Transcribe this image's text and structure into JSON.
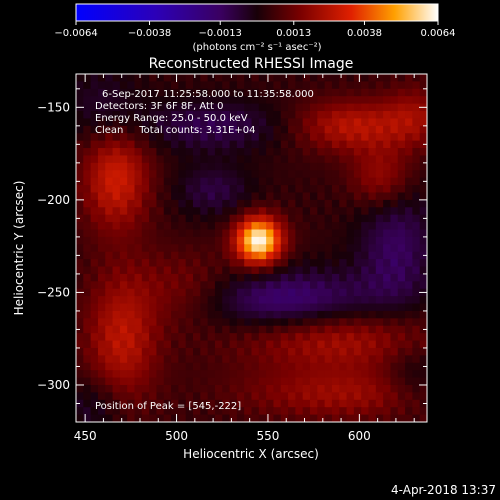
{
  "chart_data": {
    "type": "heatmap",
    "title": "Reconstructed RHESSI Image",
    "xlabel": "Heliocentric X (arcsec)",
    "ylabel": "Heliocentric Y (arcsec)",
    "xlim": [
      445,
      637
    ],
    "ylim": [
      -320,
      -132
    ],
    "x_ticks": [
      450,
      500,
      550,
      600
    ],
    "x_tick_labels": [
      "450",
      "500",
      "550",
      "600"
    ],
    "y_ticks": [
      -150,
      -200,
      -250,
      -300
    ],
    "y_tick_labels": [
      "−150",
      "−200",
      "−250",
      "−300"
    ],
    "colorbar": {
      "range": [
        -0.0064,
        0.0064
      ],
      "ticks": [
        -0.0064,
        -0.0038,
        -0.0013,
        0.0013,
        0.0038,
        0.0064
      ],
      "tick_labels": [
        "−0.0064",
        "−0.0038",
        "−0.0013",
        "0.0013",
        "0.0038",
        "0.0064"
      ],
      "unit_label": "(photons cm⁻² s⁻¹ asec⁻²)"
    },
    "annotations": [
      "6-Sep-2017 11:25:58.000 to 11:35:58.000",
      "Detectors: 3F 6F 8F, Att 0",
      "Energy Range: 25.0 - 50.0 keV",
      "Clean     Total counts: 3.31E+04"
    ],
    "peak_label": "Position of Peak = [545,-222]",
    "peak": {
      "x": 545,
      "y": -222,
      "value": 0.0064
    },
    "sources": [
      {
        "x": 545,
        "y": -222,
        "sx": 9,
        "sy": 9,
        "amp": 0.006
      },
      {
        "x": 467,
        "y": -188,
        "sx": 13,
        "sy": 20,
        "amp": 0.0026
      },
      {
        "x": 595,
        "y": -160,
        "sx": 22,
        "sy": 10,
        "amp": 0.0022
      },
      {
        "x": 612,
        "y": -188,
        "sx": 12,
        "sy": 12,
        "amp": 0.0018
      },
      {
        "x": 470,
        "y": -275,
        "sx": 14,
        "sy": 25,
        "amp": 0.0022
      },
      {
        "x": 588,
        "y": -275,
        "sx": 40,
        "sy": 12,
        "amp": 0.002
      },
      {
        "x": 590,
        "y": -305,
        "sx": 40,
        "sy": 10,
        "amp": 0.0016
      },
      {
        "x": 505,
        "y": -248,
        "sx": 20,
        "sy": 14,
        "amp": 0.0012
      },
      {
        "x": 520,
        "y": -195,
        "sx": 15,
        "sy": 10,
        "amp": -0.0012
      },
      {
        "x": 520,
        "y": -160,
        "sx": 30,
        "sy": 10,
        "amp": -0.0014
      },
      {
        "x": 560,
        "y": -255,
        "sx": 35,
        "sy": 12,
        "amp": -0.0022
      },
      {
        "x": 620,
        "y": -225,
        "sx": 15,
        "sy": 25,
        "amp": -0.0016
      },
      {
        "x": 460,
        "y": -150,
        "sx": 15,
        "sy": 15,
        "amp": -0.001
      },
      {
        "x": 630,
        "y": -155,
        "sx": 12,
        "sy": 12,
        "amp": 0.0014
      },
      {
        "x": 630,
        "y": -295,
        "sx": 12,
        "sy": 12,
        "amp": -0.001
      },
      {
        "x": 455,
        "y": -312,
        "sx": 12,
        "sy": 12,
        "amp": -0.001
      }
    ],
    "grid": false
  },
  "footer": {
    "timestamp": "4-Apr-2018 13:37"
  }
}
